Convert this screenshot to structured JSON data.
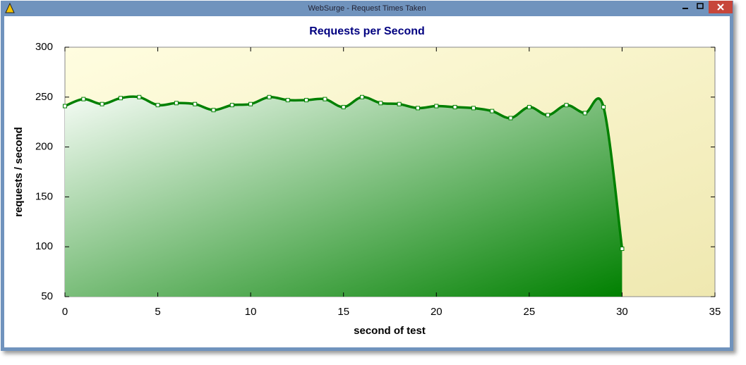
{
  "window": {
    "title": "WebSurge - Request Times Taken"
  },
  "chart_data": {
    "type": "area",
    "title": "Requests per Second",
    "x_label": "second of test",
    "y_label": "requests / second",
    "x": [
      0,
      1,
      2,
      3,
      4,
      5,
      6,
      7,
      8,
      9,
      10,
      11,
      12,
      13,
      14,
      15,
      16,
      17,
      18,
      19,
      20,
      21,
      22,
      23,
      24,
      25,
      26,
      27,
      28,
      29,
      30
    ],
    "series": [
      {
        "name": "requests",
        "color": "#008000",
        "values": [
          241,
          248,
          243,
          249,
          250,
          242,
          244,
          243,
          237,
          242,
          243,
          250,
          247,
          247,
          248,
          240,
          250,
          244,
          243,
          239,
          241,
          240,
          239,
          236,
          229,
          240,
          232,
          242,
          234,
          240,
          98
        ]
      }
    ],
    "xlim": [
      0,
      35
    ],
    "xticks": [
      0,
      5,
      10,
      15,
      20,
      25,
      30,
      35
    ],
    "ylim": [
      50,
      300
    ],
    "yticks": [
      50,
      100,
      150,
      200,
      250,
      300
    ]
  }
}
